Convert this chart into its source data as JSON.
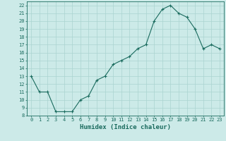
{
  "x": [
    0,
    1,
    2,
    3,
    4,
    5,
    6,
    7,
    8,
    9,
    10,
    11,
    12,
    13,
    14,
    15,
    16,
    17,
    18,
    19,
    20,
    21,
    22,
    23
  ],
  "y": [
    13,
    11,
    11,
    8.5,
    8.5,
    8.5,
    10,
    10.5,
    12.5,
    13,
    14.5,
    15,
    15.5,
    16.5,
    17,
    20,
    21.5,
    22,
    21,
    20.5,
    19,
    16.5,
    17,
    16.5
  ],
  "line_color": "#1a6b5e",
  "marker": "+",
  "marker_size": 3,
  "marker_linewidth": 0.8,
  "bg_color": "#cceae8",
  "grid_color": "#aad4d0",
  "tick_color": "#1a6b5e",
  "xlabel": "Humidex (Indice chaleur)",
  "xlabel_fontsize": 6.5,
  "xlim": [
    -0.5,
    23.5
  ],
  "ylim": [
    8,
    22.5
  ],
  "yticks": [
    8,
    9,
    10,
    11,
    12,
    13,
    14,
    15,
    16,
    17,
    18,
    19,
    20,
    21,
    22
  ],
  "xticks": [
    0,
    1,
    2,
    3,
    4,
    5,
    6,
    7,
    8,
    9,
    10,
    11,
    12,
    13,
    14,
    15,
    16,
    17,
    18,
    19,
    20,
    21,
    22,
    23
  ],
  "tick_fontsize": 5.0,
  "line_width": 0.8
}
